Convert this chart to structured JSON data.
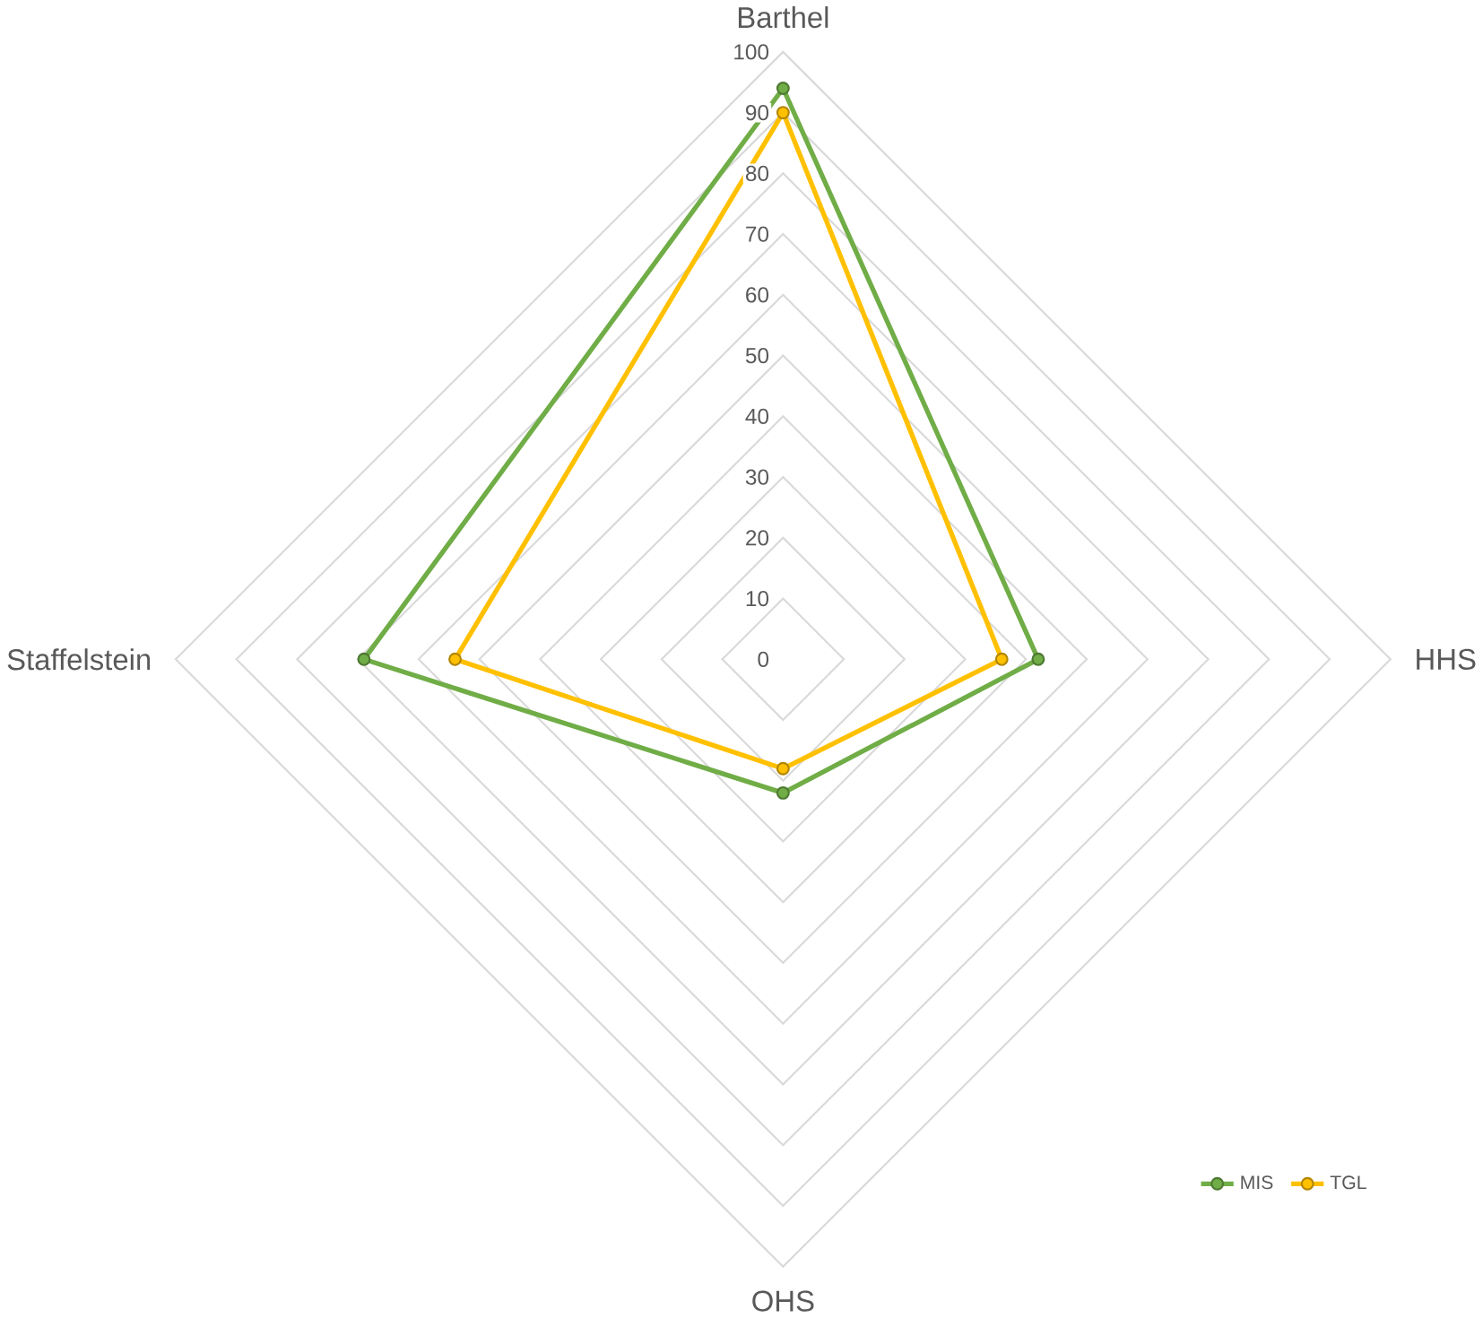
{
  "chart_data": {
    "type": "radar",
    "categories": [
      "Barthel",
      "HHS",
      "OHS",
      "Staffelstein"
    ],
    "series": [
      {
        "name": "MIS",
        "color": "#70ad47",
        "values": [
          94,
          42,
          22,
          69
        ]
      },
      {
        "name": "TGL",
        "color": "#ffc000",
        "values": [
          90,
          36,
          18,
          54
        ]
      }
    ],
    "ylim": [
      0,
      100
    ],
    "yticks": [
      0,
      10,
      20,
      30,
      40,
      50,
      60,
      70,
      80,
      90,
      100
    ],
    "grid": true,
    "legend": "bottom right",
    "marker": "circle"
  }
}
